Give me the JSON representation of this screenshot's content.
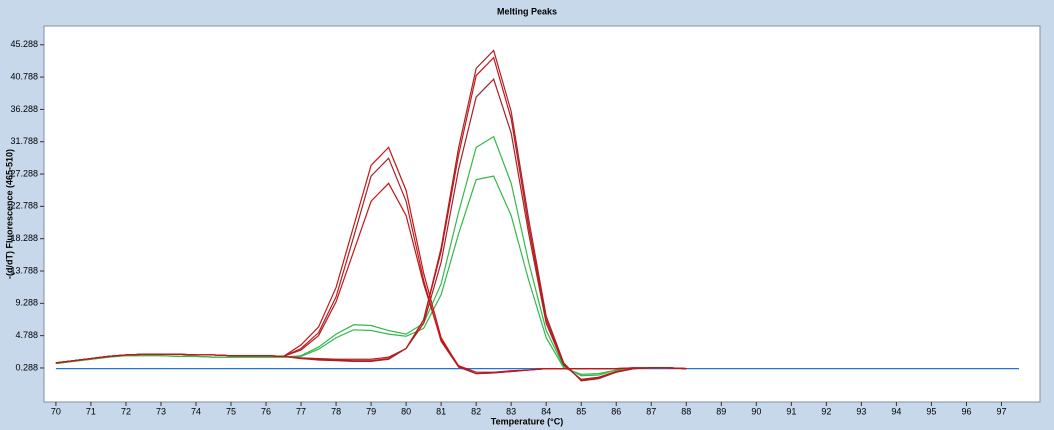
{
  "chart_data": {
    "type": "line",
    "title": "Melting Peaks",
    "x_label": "Temperature (°C)",
    "y_label": "-(d/dT) Fluorescence (465-510)",
    "xlim": [
      69.66,
      98.1
    ],
    "ylim": [
      -4.45,
      47.9
    ],
    "xticks": [
      70,
      71,
      72,
      73,
      74,
      75,
      76,
      77,
      78,
      79,
      80,
      81,
      82,
      83,
      84,
      85,
      86,
      87,
      88,
      89,
      90,
      91,
      92,
      93,
      94,
      95,
      96,
      97
    ],
    "yticks": [
      0.288,
      4.788,
      9.288,
      13.788,
      18.288,
      22.788,
      27.288,
      31.788,
      36.288,
      40.788,
      45.288
    ],
    "x": [
      70,
      70.5,
      71,
      71.5,
      72,
      72.5,
      73,
      73.5,
      74,
      74.5,
      75,
      75.5,
      76,
      76.5,
      77,
      77.5,
      78,
      78.5,
      79,
      79.5,
      80,
      80.5,
      81,
      81.5,
      82,
      82.5,
      83,
      83.5,
      84,
      84.5,
      85,
      85.5,
      86,
      86.5,
      87,
      87.5,
      88,
      88.5,
      89,
      89.5,
      90,
      90.5,
      91,
      91.5,
      92,
      92.5,
      93,
      93.5,
      94,
      94.5,
      95,
      95.5,
      96,
      96.5,
      97,
      97.5
    ],
    "series": [
      {
        "color": "#1f74d6",
        "values": [
          0.2,
          0.2,
          0.2,
          0.2,
          0.2,
          0.2,
          0.2,
          0.2,
          0.2,
          0.2,
          0.2,
          0.2,
          0.2,
          0.2,
          0.2,
          0.2,
          0.2,
          0.2,
          0.2,
          0.2,
          0.2,
          0.2,
          0.2,
          0.2,
          0.2,
          0.2,
          0.2,
          0.2,
          0.2,
          0.2,
          0.2,
          0.2,
          0.2,
          0.2,
          0.2,
          0.2,
          0.2,
          0.2,
          0.2,
          0.2,
          0.2,
          0.2,
          0.2,
          0.2,
          0.2,
          0.2,
          0.2,
          0.2,
          0.2,
          0.2,
          0.2,
          0.2,
          0.2,
          0.2,
          0.2,
          0.2
        ]
      },
      {
        "color": "#33b84a",
        "values": [
          0.9,
          1.2,
          1.5,
          1.8,
          2.0,
          2.0,
          2.0,
          1.9,
          1.9,
          1.8,
          1.8,
          1.8,
          1.8,
          1.8,
          2.0,
          3.2,
          5,
          6.3,
          6.2,
          5.5,
          5.0,
          6.5,
          12,
          22,
          31,
          32.5,
          26,
          15,
          5.5,
          0.5,
          -0.8,
          -0.7,
          0,
          0.2,
          0.3,
          0.3,
          0.2,
          null,
          null,
          null,
          null,
          null,
          null,
          null,
          null,
          null,
          null,
          null,
          null,
          null,
          null,
          null,
          null,
          null,
          null,
          null
        ]
      },
      {
        "color": "#33b84a",
        "values": [
          0.9,
          1.2,
          1.5,
          1.8,
          2.0,
          2.0,
          2.0,
          1.9,
          1.9,
          1.8,
          1.8,
          1.8,
          1.8,
          1.8,
          1.9,
          2.9,
          4.5,
          5.6,
          5.5,
          5.0,
          4.7,
          5.8,
          10.5,
          19,
          26.5,
          27,
          21.5,
          12.5,
          4.5,
          0.3,
          -0.6,
          -0.5,
          0,
          0.2,
          0.3,
          0.3,
          0.2,
          null,
          null,
          null,
          null,
          null,
          null,
          null,
          null,
          null,
          null,
          null,
          null,
          null,
          null,
          null,
          null,
          null,
          null,
          null
        ]
      },
      {
        "color": "#a3242a",
        "values": [
          1.0,
          1.3,
          1.6,
          1.9,
          2.1,
          2.2,
          2.2,
          2.2,
          2.1,
          2.1,
          2.0,
          2.0,
          2.0,
          1.9,
          1.6,
          1.4,
          1.3,
          1.2,
          1.2,
          1.5,
          3,
          7,
          17,
          31,
          42,
          44.5,
          36,
          21,
          7.5,
          1,
          -1.5,
          -1.2,
          -0.3,
          0.2,
          0.3,
          0.3,
          0.2,
          null,
          null,
          null,
          null,
          null,
          null,
          null,
          null,
          null,
          null,
          null,
          null,
          null,
          null,
          null,
          null,
          null,
          null,
          null
        ]
      },
      {
        "color": "#c81414",
        "values": [
          1.0,
          1.3,
          1.6,
          1.9,
          2.1,
          2.2,
          2.2,
          2.2,
          2.1,
          2.1,
          2.0,
          2.0,
          2.0,
          1.9,
          1.6,
          1.5,
          1.4,
          1.3,
          1.3,
          1.6,
          3,
          7,
          16.5,
          30,
          41,
          43.5,
          35,
          20,
          7,
          0.8,
          -1.4,
          -1.1,
          -0.3,
          0.2,
          0.3,
          0.3,
          0.2,
          null,
          null,
          null,
          null,
          null,
          null,
          null,
          null,
          null,
          null,
          null,
          null,
          null,
          null,
          null,
          null,
          null,
          null,
          null
        ]
      },
      {
        "color": "#a3242a",
        "values": [
          1.0,
          1.3,
          1.6,
          1.9,
          2.1,
          2.2,
          2.2,
          2.2,
          2.1,
          2.1,
          2.0,
          2.0,
          2.0,
          1.9,
          1.7,
          1.6,
          1.5,
          1.5,
          1.5,
          1.8,
          3,
          6.5,
          15,
          28,
          38,
          40.5,
          33,
          19,
          6.5,
          0.7,
          -1.3,
          -1.0,
          -0.2,
          0.2,
          0.3,
          0.3,
          0.2,
          null,
          null,
          null,
          null,
          null,
          null,
          null,
          null,
          null,
          null,
          null,
          null,
          null,
          null,
          null,
          null,
          null,
          null,
          null
        ]
      },
      {
        "color": "#c81414",
        "values": [
          1.0,
          1.3,
          1.6,
          1.9,
          2.1,
          2.2,
          2.2,
          2.2,
          2.1,
          2.1,
          2.0,
          2.0,
          2.0,
          1.9,
          3.5,
          6.0,
          11.5,
          20,
          28.5,
          31,
          25,
          13.5,
          4.5,
          0.5,
          -0.5,
          -0.4,
          -0.2,
          0,
          0.2,
          0.2,
          0.2,
          0.2,
          0.2,
          0.3,
          0.3,
          0.3,
          0.2,
          null,
          null,
          null,
          null,
          null,
          null,
          null,
          null,
          null,
          null,
          null,
          null,
          null,
          null,
          null,
          null,
          null,
          null,
          null
        ]
      },
      {
        "color": "#a3242a",
        "values": [
          1.0,
          1.3,
          1.6,
          1.9,
          2.1,
          2.2,
          2.2,
          2.2,
          2.1,
          2.1,
          2.0,
          2.0,
          2.0,
          1.9,
          3.0,
          5.2,
          10.2,
          18.5,
          27,
          29.5,
          23.5,
          12.5,
          4.0,
          0.4,
          -0.5,
          -0.4,
          -0.2,
          0,
          0.2,
          0.2,
          0.2,
          0.2,
          0.2,
          0.3,
          0.3,
          0.3,
          0.2,
          null,
          null,
          null,
          null,
          null,
          null,
          null,
          null,
          null,
          null,
          null,
          null,
          null,
          null,
          null,
          null,
          null,
          null,
          null
        ]
      },
      {
        "color": "#c81414",
        "values": [
          1.0,
          1.3,
          1.6,
          1.9,
          2.1,
          2.2,
          2.2,
          2.2,
          2.1,
          2.1,
          2.0,
          2.0,
          2.0,
          1.9,
          2.8,
          4.8,
          9.5,
          16.5,
          23.5,
          26,
          21.5,
          12,
          4.2,
          0.6,
          -0.3,
          -0.3,
          -0.1,
          0,
          0.2,
          0.2,
          0.2,
          0.2,
          0.2,
          0.3,
          0.3,
          0.3,
          0.2,
          null,
          null,
          null,
          null,
          null,
          null,
          null,
          null,
          null,
          null,
          null,
          null,
          null,
          null,
          null,
          null,
          null,
          null,
          null
        ]
      }
    ]
  }
}
